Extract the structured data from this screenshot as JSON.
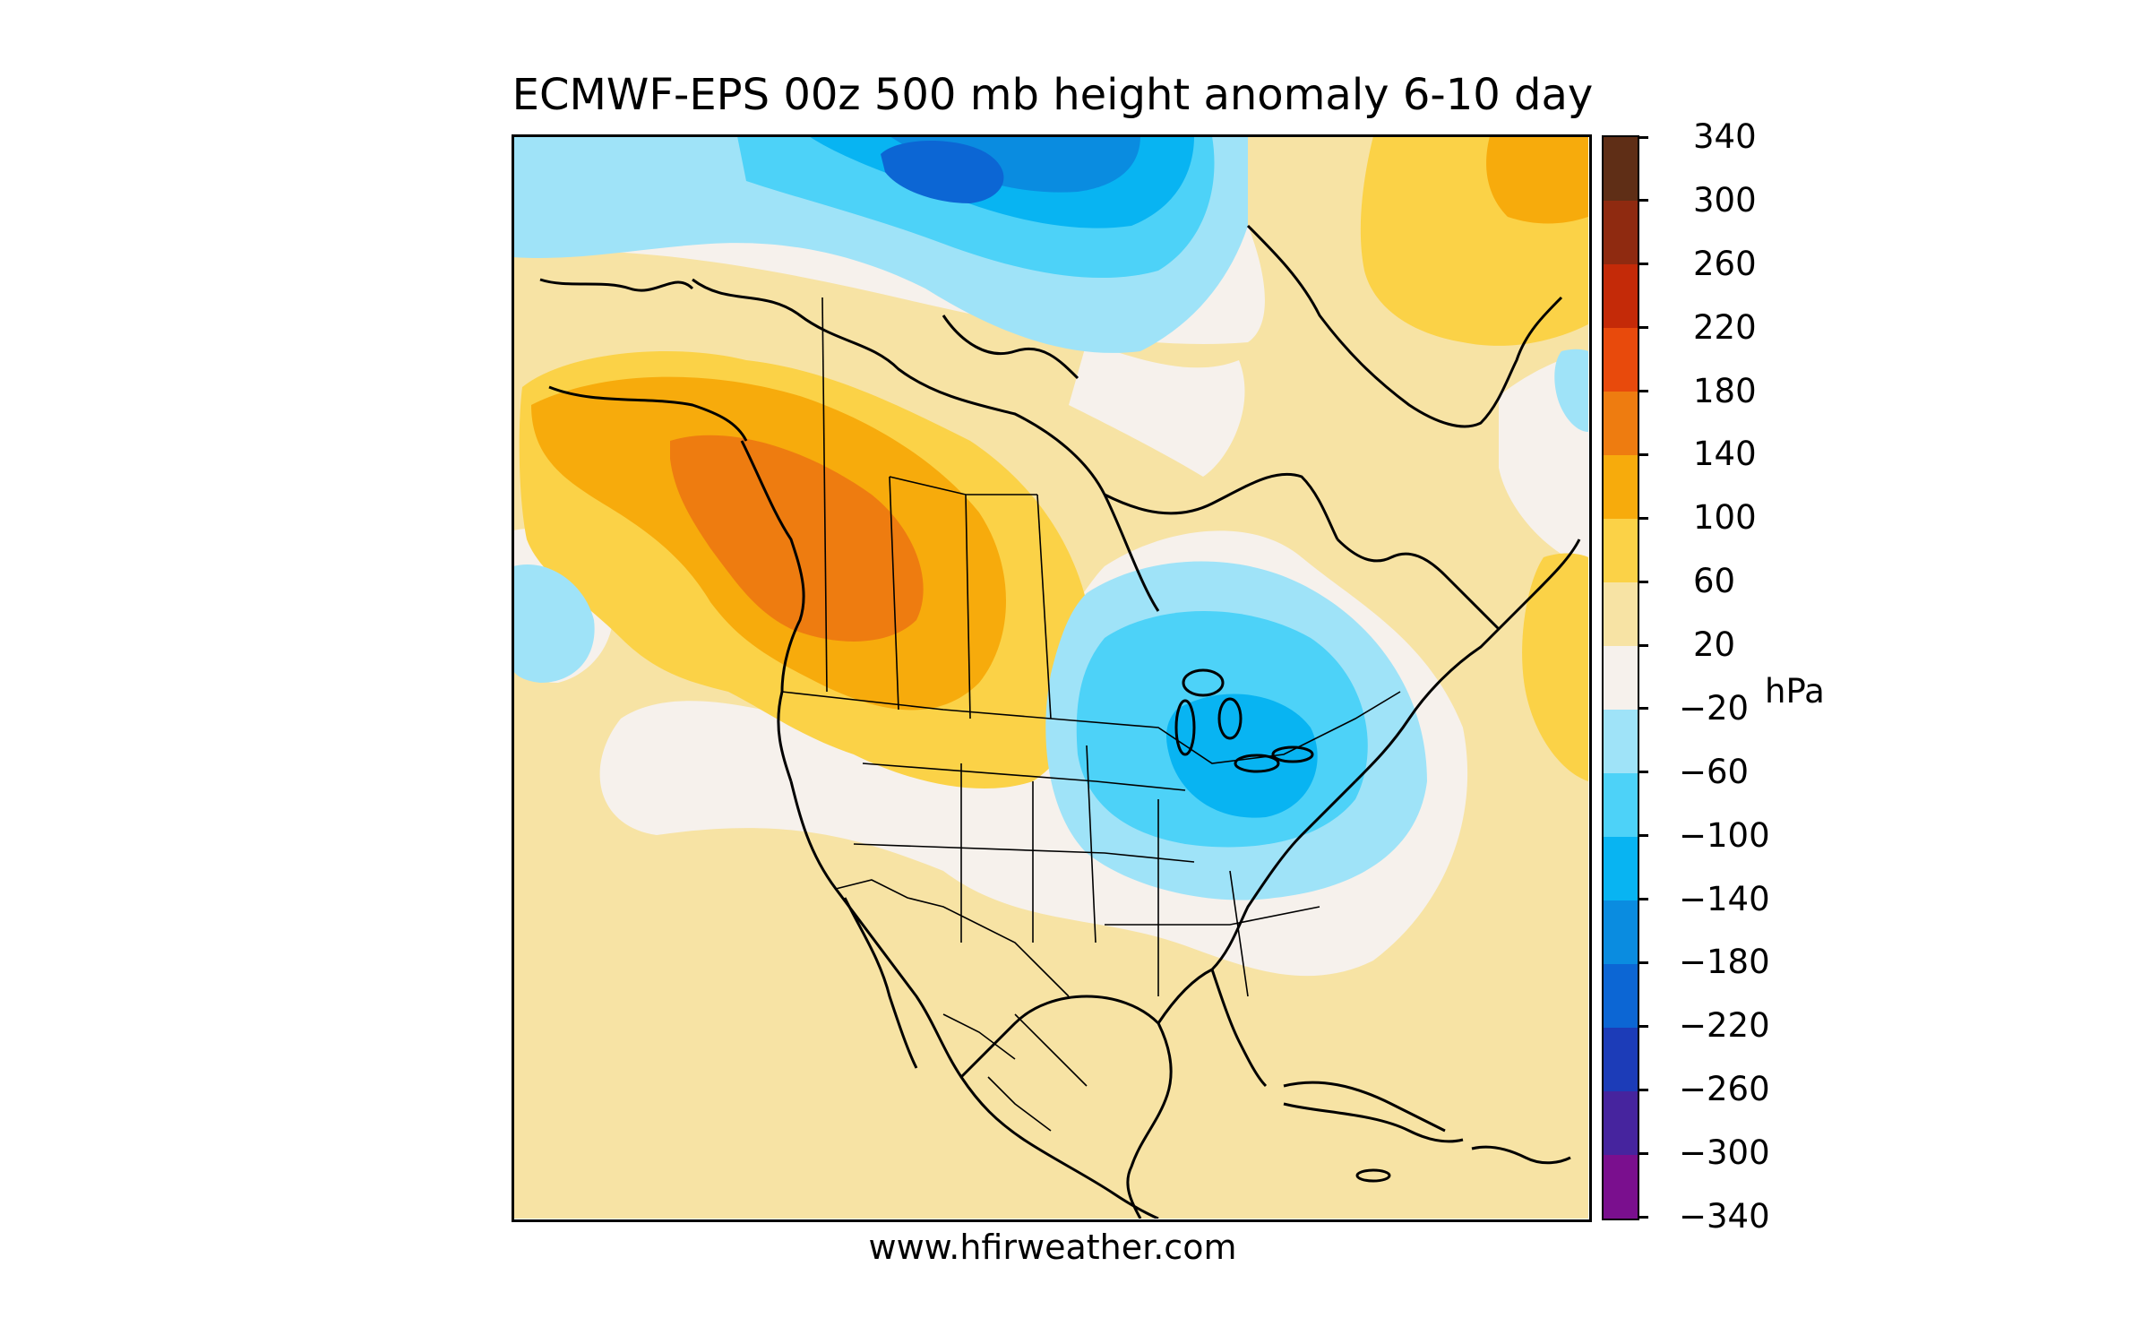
{
  "title": "ECMWF-EPS 00z 500 mb height anomaly 6-10 day",
  "credit": "www.hfirweather.com",
  "colorbar": {
    "units": "hPa",
    "ticks": [
      "340",
      "300",
      "260",
      "220",
      "180",
      "140",
      "100",
      "60",
      "20",
      "−20",
      "−60",
      "−100",
      "−140",
      "−180",
      "−220",
      "−260",
      "−300",
      "−340"
    ],
    "bins": [
      {
        "range": "300 to 340",
        "color": "#5f2e16"
      },
      {
        "range": "260 to 300",
        "color": "#8f2a10"
      },
      {
        "range": "220 to 260",
        "color": "#c42a08"
      },
      {
        "range": "180 to 220",
        "color": "#e84a0c"
      },
      {
        "range": "140 to 180",
        "color": "#ee7c10"
      },
      {
        "range": "100 to 140",
        "color": "#f7ab0c"
      },
      {
        "range": "60 to 100",
        "color": "#fbd247"
      },
      {
        "range": "20 to 60",
        "color": "#f7e3a4"
      },
      {
        "range": "-20 to 20",
        "color": "#f6f1ec"
      },
      {
        "range": "-60 to -20",
        "color": "#9fe3f8"
      },
      {
        "range": "-100 to -60",
        "color": "#4dd2f8"
      },
      {
        "range": "-140 to -100",
        "color": "#08b4f2"
      },
      {
        "range": "-180 to -140",
        "color": "#0a8ce0"
      },
      {
        "range": "-220 to -180",
        "color": "#0c66d4"
      },
      {
        "range": "-260 to -220",
        "color": "#1c3cb8"
      },
      {
        "range": "-300 to -260",
        "color": "#46249e"
      },
      {
        "range": "-340 to -300",
        "color": "#7a0f8e"
      }
    ]
  },
  "map": {
    "region": "North America",
    "anomaly_centers": [
      {
        "location": "British Columbia / Alberta",
        "bin": "140 to 180"
      },
      {
        "location": "Great Lakes / Ontario",
        "bin": "-140 to -100"
      },
      {
        "location": "Canadian Arctic Archipelago",
        "bin": "-220 to -180"
      },
      {
        "location": "Greenland",
        "bin": "100 to 140"
      },
      {
        "location": "Northeast Pacific",
        "bin": "-60 to -20"
      }
    ]
  }
}
